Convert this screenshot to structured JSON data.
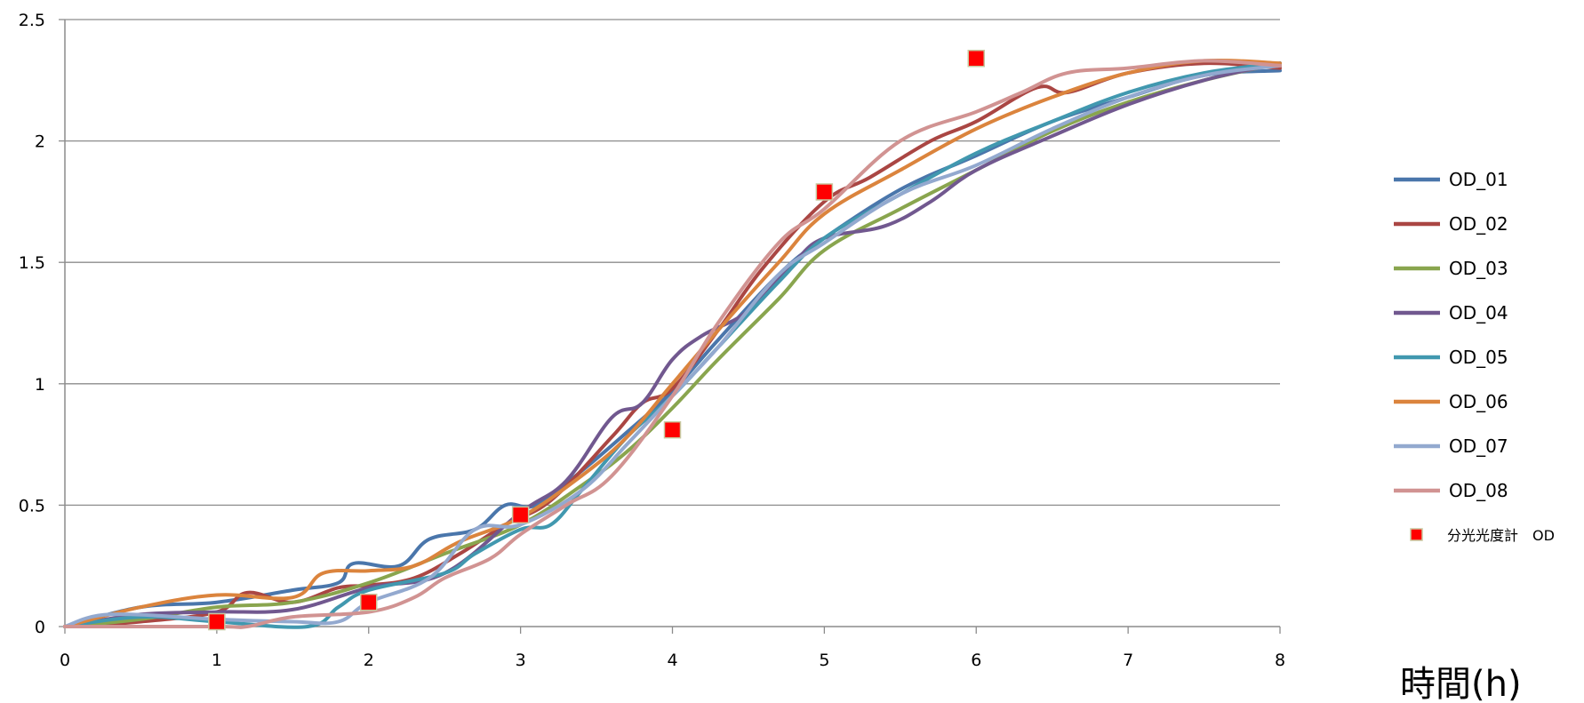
{
  "chart_data": {
    "type": "line",
    "title": "",
    "xlabel": "時間(h)",
    "ylabel": "",
    "xlim": [
      0,
      8
    ],
    "ylim": [
      0,
      2.5
    ],
    "x_ticks": [
      "0",
      "1",
      "2",
      "3",
      "4",
      "5",
      "6",
      "7",
      "8"
    ],
    "y_ticks": [
      "0",
      "0.5",
      "1",
      "1.5",
      "2",
      "2.5"
    ],
    "grid": "horizontal",
    "legend_position": "right",
    "series": [
      {
        "name": "OD_01",
        "color": "#4a76ab",
        "x": [
          0,
          0.5,
          1,
          1.5,
          1.8,
          1.9,
          2.2,
          2.4,
          2.7,
          2.9,
          3.1,
          3.4,
          3.7,
          4.0,
          4.3,
          4.7,
          5.0,
          5.5,
          6.0,
          6.5,
          7.0,
          7.5,
          8.0
        ],
        "y": [
          0,
          0.08,
          0.1,
          0.15,
          0.18,
          0.26,
          0.25,
          0.36,
          0.4,
          0.5,
          0.5,
          0.64,
          0.8,
          0.97,
          1.18,
          1.45,
          1.6,
          1.8,
          1.94,
          2.08,
          2.18,
          2.27,
          2.29
        ]
      },
      {
        "name": "OD_02",
        "color": "#aa4643",
        "x": [
          0,
          0.5,
          1,
          1.2,
          1.5,
          1.8,
          2.0,
          2.3,
          2.6,
          2.9,
          3.2,
          3.6,
          3.8,
          4.0,
          4.3,
          4.6,
          5.0,
          5.3,
          5.7,
          6.0,
          6.4,
          6.6,
          7.0,
          7.5,
          8.0
        ],
        "y": [
          0,
          0.02,
          0.06,
          0.14,
          0.1,
          0.16,
          0.17,
          0.2,
          0.3,
          0.42,
          0.52,
          0.78,
          0.92,
          0.98,
          1.22,
          1.48,
          1.75,
          1.85,
          2.0,
          2.08,
          2.22,
          2.2,
          2.28,
          2.32,
          2.3
        ]
      },
      {
        "name": "OD_03",
        "color": "#89a54e",
        "x": [
          0,
          0.5,
          1,
          1.5,
          2.0,
          2.5,
          3.0,
          3.4,
          3.7,
          4.0,
          4.3,
          4.7,
          5.0,
          5.5,
          6.0,
          6.5,
          7.0,
          7.5,
          8.0
        ],
        "y": [
          0,
          0.03,
          0.08,
          0.1,
          0.18,
          0.3,
          0.42,
          0.58,
          0.72,
          0.9,
          1.1,
          1.35,
          1.55,
          1.72,
          1.88,
          2.04,
          2.16,
          2.25,
          2.32
        ]
      },
      {
        "name": "OD_04",
        "color": "#71588f",
        "x": [
          0,
          0.5,
          1,
          1.5,
          2.0,
          2.5,
          3.0,
          3.3,
          3.6,
          3.8,
          4.0,
          4.2,
          4.5,
          4.8,
          5.0,
          5.4,
          5.7,
          6.0,
          6.5,
          7.0,
          7.5,
          8.0
        ],
        "y": [
          0,
          0.05,
          0.06,
          0.07,
          0.16,
          0.22,
          0.47,
          0.6,
          0.86,
          0.92,
          1.1,
          1.2,
          1.3,
          1.5,
          1.6,
          1.65,
          1.75,
          1.88,
          2.02,
          2.15,
          2.25,
          2.32
        ]
      },
      {
        "name": "OD_05",
        "color": "#4198af",
        "x": [
          0,
          0.5,
          1,
          1.6,
          1.8,
          2.0,
          2.5,
          2.7,
          3.0,
          3.2,
          3.4,
          3.7,
          4.0,
          4.3,
          4.7,
          5.0,
          5.5,
          6.0,
          6.5,
          7.0,
          7.5,
          8.0
        ],
        "y": [
          0,
          0.04,
          0.02,
          0.0,
          0.08,
          0.15,
          0.22,
          0.3,
          0.4,
          0.42,
          0.56,
          0.78,
          0.95,
          1.15,
          1.42,
          1.6,
          1.78,
          1.95,
          2.08,
          2.2,
          2.28,
          2.32
        ]
      },
      {
        "name": "OD_06",
        "color": "#db843d",
        "x": [
          0,
          0.5,
          1,
          1.5,
          1.7,
          2.0,
          2.3,
          2.6,
          3.0,
          3.4,
          3.7,
          4.0,
          4.3,
          4.7,
          5.0,
          5.5,
          6.0,
          6.5,
          7.0,
          7.5,
          8.0
        ],
        "y": [
          0,
          0.08,
          0.13,
          0.12,
          0.22,
          0.23,
          0.25,
          0.35,
          0.45,
          0.62,
          0.78,
          1.0,
          1.22,
          1.5,
          1.7,
          1.88,
          2.05,
          2.18,
          2.28,
          2.33,
          2.32
        ]
      },
      {
        "name": "OD_07",
        "color": "#93a9cf",
        "x": [
          0,
          0.3,
          1,
          1.5,
          1.8,
          2.0,
          2.4,
          2.7,
          3.0,
          3.4,
          3.7,
          4.0,
          4.3,
          4.7,
          5.0,
          5.5,
          6.0,
          6.5,
          7.0,
          7.5,
          8.0
        ],
        "y": [
          0,
          0.05,
          0.03,
          0.02,
          0.02,
          0.1,
          0.2,
          0.4,
          0.42,
          0.56,
          0.75,
          0.95,
          1.15,
          1.45,
          1.58,
          1.78,
          1.9,
          2.05,
          2.18,
          2.27,
          2.31
        ]
      },
      {
        "name": "OD_08",
        "color": "#d19392",
        "x": [
          0,
          1,
          1.2,
          1.5,
          2.0,
          2.3,
          2.5,
          2.8,
          3.0,
          3.3,
          3.6,
          4.0,
          4.3,
          4.7,
          5.0,
          5.5,
          6.0,
          6.3,
          6.6,
          7.0,
          7.5,
          8.0
        ],
        "y": [
          0,
          0.0,
          0.0,
          0.04,
          0.06,
          0.12,
          0.2,
          0.28,
          0.38,
          0.5,
          0.62,
          0.95,
          1.25,
          1.58,
          1.72,
          2.0,
          2.12,
          2.2,
          2.28,
          2.3,
          2.33,
          2.31
        ]
      }
    ],
    "scatter": {
      "name": "分光光度計　OD",
      "color": "#ff0000",
      "x": [
        1,
        2,
        3,
        4,
        5,
        6
      ],
      "y": [
        0.02,
        0.1,
        0.46,
        0.81,
        1.79,
        2.34
      ]
    }
  }
}
